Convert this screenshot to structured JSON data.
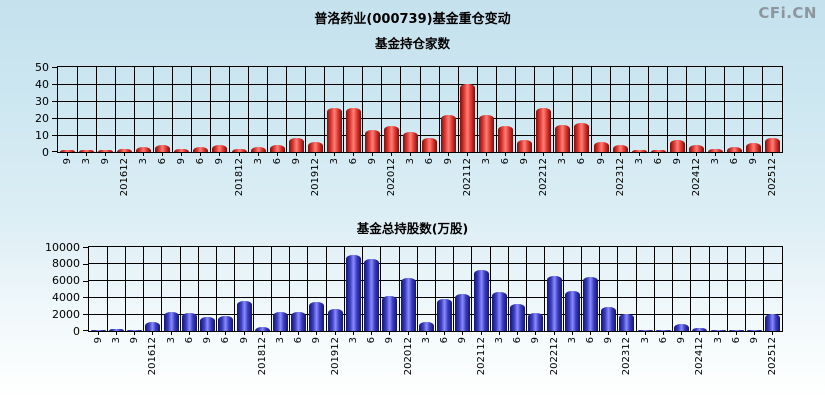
{
  "page": {
    "logo": "CFi.CN",
    "title": "普洛药业(000739)基金重仓变动"
  },
  "chart_data": [
    {
      "type": "bar",
      "title": "基金持仓家数",
      "xlabel": "",
      "ylabel": "",
      "ylim": [
        0,
        50
      ],
      "yticks": [
        0,
        10,
        20,
        30,
        40,
        50
      ],
      "grid": true,
      "legend": "none",
      "bar_color_dark": "#7a0f0f",
      "bar_color_mid": "#e03a32",
      "bar_color_light": "#ff8078",
      "categories": [
        "9",
        "3",
        "9",
        "201612",
        "3",
        "6",
        "9",
        "6",
        "9",
        "201812",
        "3",
        "6",
        "9",
        "201912",
        "3",
        "6",
        "9",
        "202012",
        "3",
        "6",
        "9",
        "202112",
        "3",
        "6",
        "9",
        "202212",
        "3",
        "6",
        "9",
        "202312",
        "3",
        "6",
        "9",
        "202412",
        "3",
        "6",
        "9",
        "202512"
      ],
      "values": [
        1,
        1,
        1,
        2,
        3,
        4,
        2,
        3,
        4,
        2,
        3,
        4,
        8,
        6,
        26,
        26,
        13,
        15,
        12,
        8,
        22,
        40,
        22,
        15,
        7,
        26,
        16,
        17,
        6,
        4,
        1,
        1,
        7,
        4,
        2,
        3,
        5,
        8
      ]
    },
    {
      "type": "bar",
      "title": "基金总持股数(万股)",
      "xlabel": "",
      "ylabel": "",
      "ylim": [
        0,
        10000
      ],
      "yticks": [
        0,
        2000,
        4000,
        6000,
        8000,
        10000
      ],
      "grid": true,
      "legend": "none",
      "bar_color_dark": "#141670",
      "bar_color_mid": "#3a3ec0",
      "bar_color_light": "#8c8cff",
      "categories": [
        "9",
        "3",
        "9",
        "201612",
        "3",
        "6",
        "9",
        "6",
        "9",
        "201812",
        "3",
        "6",
        "9",
        "201912",
        "3",
        "6",
        "9",
        "202012",
        "3",
        "6",
        "9",
        "202112",
        "3",
        "6",
        "9",
        "202212",
        "3",
        "6",
        "9",
        "202312",
        "3",
        "6",
        "9",
        "202412",
        "3",
        "6",
        "9",
        "202512"
      ],
      "values": [
        100,
        250,
        100,
        1100,
        2250,
        2150,
        1700,
        1800,
        3600,
        500,
        2300,
        2300,
        3400,
        2600,
        9000,
        8600,
        4200,
        6300,
        1100,
        3800,
        4400,
        7300,
        4600,
        3200,
        2100,
        6600,
        4800,
        6400,
        2900,
        2000,
        100,
        100,
        800,
        400,
        150,
        100,
        100,
        2000
      ]
    }
  ]
}
